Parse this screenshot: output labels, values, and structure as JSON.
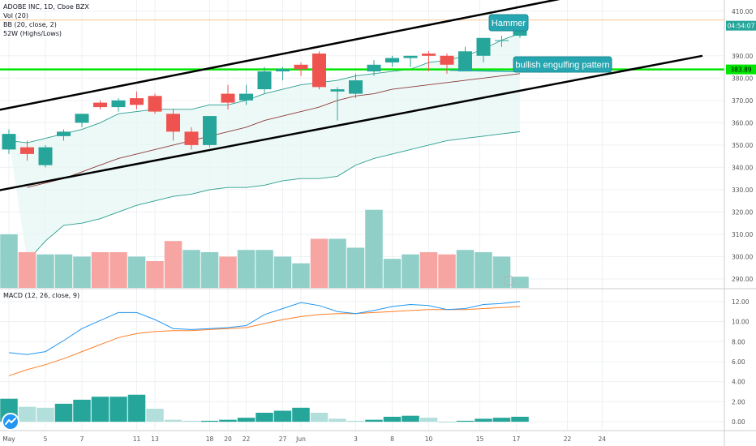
{
  "chart_data": [
    {
      "panel": "price",
      "type": "candlestick",
      "legend": [
        "ADOBE INC, 1D, Cboe BZX",
        "Vol (20)",
        "BB (20, close, 2)",
        "52W (Highs/Lows)"
      ],
      "x_ticks": [
        "May",
        "5",
        "7",
        "11",
        "13",
        "18",
        "20",
        "22",
        "27",
        "Jun",
        "3",
        "8",
        "10",
        "15",
        "17",
        "22",
        "24"
      ],
      "y_ticks": [
        "410.00",
        "390.00",
        "380.00",
        "370.00",
        "360.00",
        "350.00",
        "340.00",
        "330.00",
        "320.00",
        "310.00",
        "300.00",
        "290.00"
      ],
      "ylim": [
        286,
        415
      ],
      "candles": [
        {
          "o": 348,
          "h": 357,
          "l": 346,
          "c": 355
        },
        {
          "o": 349,
          "h": 352,
          "l": 343,
          "c": 346
        },
        {
          "o": 341,
          "h": 350,
          "l": 340,
          "c": 349
        },
        {
          "o": 354,
          "h": 357,
          "l": 352,
          "c": 356
        },
        {
          "o": 360,
          "h": 363,
          "l": 358,
          "c": 364
        },
        {
          "o": 369,
          "h": 370,
          "l": 366,
          "c": 367
        },
        {
          "o": 367,
          "h": 371,
          "l": 365,
          "c": 370
        },
        {
          "o": 371,
          "h": 374,
          "l": 366,
          "c": 368
        },
        {
          "o": 372,
          "h": 373,
          "l": 364,
          "c": 365
        },
        {
          "o": 364,
          "h": 366,
          "l": 352,
          "c": 356
        },
        {
          "o": 356,
          "h": 358,
          "l": 348,
          "c": 350
        },
        {
          "o": 350,
          "h": 363,
          "l": 349,
          "c": 363
        },
        {
          "o": 373,
          "h": 377,
          "l": 366,
          "c": 369
        },
        {
          "o": 370,
          "h": 377,
          "l": 368,
          "c": 373
        },
        {
          "o": 375,
          "h": 385,
          "l": 373,
          "c": 383
        },
        {
          "o": 383,
          "h": 385,
          "l": 379,
          "c": 384
        },
        {
          "o": 386,
          "h": 387,
          "l": 381,
          "c": 384
        },
        {
          "o": 391,
          "h": 392,
          "l": 375,
          "c": 376
        },
        {
          "o": 374,
          "h": 376,
          "l": 361,
          "c": 375
        },
        {
          "o": 373,
          "h": 382,
          "l": 371,
          "c": 379
        },
        {
          "o": 383,
          "h": 388,
          "l": 381,
          "c": 386
        },
        {
          "o": 387,
          "h": 390,
          "l": 385,
          "c": 389
        },
        {
          "o": 389,
          "h": 390,
          "l": 385,
          "c": 390
        },
        {
          "o": 391,
          "h": 392,
          "l": 383,
          "c": 390
        },
        {
          "o": 390,
          "h": 391,
          "l": 382,
          "c": 386
        },
        {
          "o": 383,
          "h": 394,
          "l": 383,
          "c": 392
        },
        {
          "o": 390,
          "h": 398,
          "l": 387,
          "c": 398
        },
        {
          "o": 397,
          "h": 399,
          "l": 394,
          "c": 397
        },
        {
          "o": 399,
          "h": 404,
          "l": 398,
          "c": 403
        }
      ],
      "volume": [
        {
          "v": 310,
          "up": true
        },
        {
          "v": 302,
          "up": false
        },
        {
          "v": 301,
          "up": true
        },
        {
          "v": 301,
          "up": true
        },
        {
          "v": 300,
          "up": true
        },
        {
          "v": 302,
          "up": false
        },
        {
          "v": 302,
          "up": false
        },
        {
          "v": 300,
          "up": true
        },
        {
          "v": 298,
          "up": false
        },
        {
          "v": 307,
          "up": false
        },
        {
          "v": 303,
          "up": true
        },
        {
          "v": 302,
          "up": true
        },
        {
          "v": 300,
          "up": false
        },
        {
          "v": 303,
          "up": true
        },
        {
          "v": 303,
          "up": true
        },
        {
          "v": 300,
          "up": true
        },
        {
          "v": 297,
          "up": true
        },
        {
          "v": 308,
          "up": false
        },
        {
          "v": 308,
          "up": true
        },
        {
          "v": 304,
          "up": true
        },
        {
          "v": 321,
          "up": true
        },
        {
          "v": 299,
          "up": true
        },
        {
          "v": 301,
          "up": true
        },
        {
          "v": 302,
          "up": false
        },
        {
          "v": 301,
          "up": false
        },
        {
          "v": 303,
          "up": true
        },
        {
          "v": 302,
          "up": true
        },
        {
          "v": 300,
          "up": true
        },
        {
          "v": 291,
          "up": true
        }
      ],
      "bb_upper": [
        352,
        351,
        353,
        355,
        357,
        360,
        364,
        365,
        366,
        366,
        366,
        368,
        368,
        370,
        373,
        375,
        377,
        378,
        379,
        381,
        382,
        383,
        384,
        387,
        388,
        390,
        393,
        397,
        400
      ],
      "bb_middle": [
        null,
        331,
        333,
        335,
        338,
        341,
        344,
        346,
        348,
        350,
        352,
        354,
        356,
        358,
        361,
        363,
        365,
        367,
        370,
        372,
        373,
        375,
        376,
        377,
        378,
        379,
        380,
        381,
        382
      ],
      "bb_lower": [
        null,
        298,
        307,
        314,
        315,
        317,
        320,
        323,
        325,
        327,
        328,
        330,
        331,
        331,
        332,
        334,
        335,
        335,
        336,
        341,
        344,
        346,
        348,
        350,
        352,
        353,
        354,
        355,
        356
      ],
      "horizontal_level": {
        "value": 383.89,
        "label": "383.89"
      },
      "price_label": {
        "value": 403.5,
        "label": "04:54:07"
      },
      "high_line": 406,
      "channel_upper": [
        {
          "x": -1,
          "y": 365
        },
        {
          "x": 33,
          "y": 420
        }
      ],
      "channel_lower": [
        {
          "x": -1,
          "y": 329
        },
        {
          "x": 38,
          "y": 390
        }
      ],
      "annotations": [
        {
          "text": "Hammer",
          "target": 27
        },
        {
          "text": "bullish engulfing pattern",
          "target": 24
        }
      ]
    },
    {
      "panel": "macd",
      "type": "line",
      "legend": "MACD (12, 26, close, 9)",
      "y_ticks": [
        "12.00",
        "10.00",
        "8.00",
        "6.00",
        "4.00",
        "2.00",
        "0.00"
      ],
      "ylim": [
        -0.8,
        13.2
      ],
      "macd": [
        6.9,
        6.7,
        7.0,
        8.1,
        9.3,
        10.1,
        10.9,
        10.9,
        10.2,
        9.3,
        9.2,
        9.3,
        9.4,
        9.6,
        10.7,
        11.3,
        11.9,
        11.6,
        11.0,
        10.8,
        11.1,
        11.5,
        11.7,
        11.6,
        11.2,
        11.3,
        11.7,
        11.8,
        12.0
      ],
      "signal": [
        4.6,
        5.2,
        5.7,
        6.3,
        7.0,
        7.7,
        8.4,
        8.8,
        9.0,
        9.1,
        9.1,
        9.2,
        9.3,
        9.4,
        9.8,
        10.2,
        10.5,
        10.7,
        10.8,
        10.8,
        10.9,
        11.0,
        11.1,
        11.2,
        11.2,
        11.2,
        11.3,
        11.4,
        11.5
      ],
      "histogram": [
        2.3,
        1.5,
        1.4,
        1.8,
        2.2,
        2.5,
        2.5,
        2.7,
        1.3,
        0.2,
        0.1,
        0.1,
        0.2,
        0.4,
        0.9,
        1.1,
        1.4,
        0.9,
        0.3,
        0.1,
        0.2,
        0.5,
        0.6,
        0.4,
        0.0,
        0.1,
        0.3,
        0.4,
        0.5
      ]
    }
  ],
  "theme": {
    "up": "#26a69a",
    "down": "#ef5350",
    "up_volume": "#8fcfc8",
    "down_volume": "#f7a5a3",
    "bb_band": "#2a9d8f",
    "bb_fill": "#e6f6f3",
    "bb_basis": "#8b3a3a",
    "level": "#00e600",
    "channel": "#000000",
    "macd": "#2196f3",
    "signal": "#ff7f27",
    "hist_strong": "#26a69a",
    "hist_weak": "#b2dfdb",
    "annotation": "#26a6b0",
    "grid": "#eef0f3",
    "axis_text": "#555555",
    "high_line": "#f7b26b"
  },
  "logo_icon": "tradingview-logo-icon"
}
